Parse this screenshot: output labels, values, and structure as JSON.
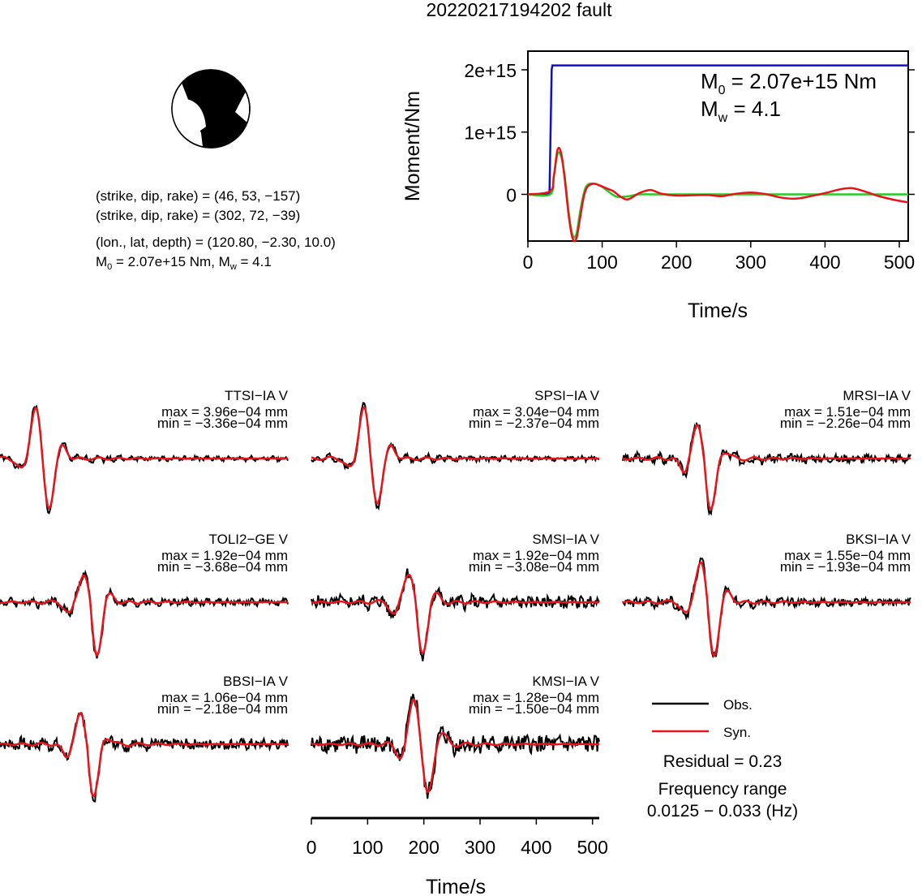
{
  "title": "20220217194202 fault",
  "info": {
    "np1": "(strike, dip, rake) = (46, 53, −157)",
    "np2": "(strike, dip, rake) = (302, 72, −39)",
    "location": "(lon., lat, depth) = (120.80, −2.30, 10.0)",
    "m0": "2.07e+15 Nm",
    "mw": "4.1"
  },
  "legend": {
    "obs": "Obs.",
    "syn": "Syn."
  },
  "residual": "Residual = 0.23",
  "freq_label": "Frequency range",
  "freq_value": "0.0125 − 0.033 (Hz)",
  "colors": {
    "obs": "#000000",
    "syn": "#e8141b",
    "cumulative": "#1010cc",
    "model": "#22cc22"
  },
  "chart_data": [
    {
      "type": "line",
      "name": "source-time-function",
      "xlabel": "Time/s",
      "ylabel": "Moment/Nm",
      "xlim": [
        0,
        512
      ],
      "ylim": [
        -750000000000000.0,
        2300000000000000.0
      ],
      "xticks": [
        0,
        100,
        200,
        300,
        400,
        500
      ],
      "yticks": [
        0,
        1000000000000000.0,
        2000000000000000.0
      ],
      "ytick_labels": [
        "0",
        "1e+15",
        "2e+15"
      ],
      "annotation": {
        "m0_line": "M0 = 2.07e+15 Nm",
        "mw_line": "Mw = 4.1"
      },
      "series": [
        {
          "key": "cumulative",
          "color": "#1010cc",
          "x": [
            0,
            29,
            32,
            33,
            100,
            512
          ],
          "y": [
            0,
            0,
            2000000000000000.0,
            2070000000000000.0,
            2070000000000000.0,
            2070000000000000.0
          ]
        },
        {
          "key": "model",
          "color": "#22cc22",
          "x": [
            0,
            30,
            35,
            40,
            45,
            50,
            55,
            60,
            65,
            70,
            75,
            80,
            90,
            100,
            110,
            120,
            135,
            150,
            170,
            200,
            300,
            400,
            512
          ],
          "y": [
            0,
            0,
            300000000000000.0,
            650000000000000.0,
            600000000000000.0,
            250000000000000.0,
            -300000000000000.0,
            -650000000000000.0,
            -650000000000000.0,
            -300000000000000.0,
            0,
            150000000000000.0,
            170000000000000.0,
            120000000000000.0,
            30000000000000.0,
            -40000000000000.0,
            -30000000000000.0,
            0,
            0,
            0,
            0,
            0,
            0
          ]
        },
        {
          "key": "syn",
          "color": "#e8141b",
          "x": [
            0,
            30,
            35,
            40,
            45,
            50,
            55,
            60,
            65,
            70,
            75,
            80,
            88,
            95,
            105,
            115,
            125,
            135,
            150,
            165,
            180,
            200,
            240,
            260,
            280,
            300,
            320,
            340,
            360,
            380,
            400,
            420,
            435,
            450,
            470,
            490,
            512
          ],
          "y": [
            0,
            50000000000000.0,
            300000000000000.0,
            720000000000000.0,
            650000000000000.0,
            200000000000000.0,
            -350000000000000.0,
            -700000000000000.0,
            -720000000000000.0,
            -400000000000000.0,
            -50000000000000.0,
            120000000000000.0,
            170000000000000.0,
            150000000000000.0,
            100000000000000.0,
            50000000000000.0,
            -40000000000000.0,
            -80000000000000.0,
            20000000000000.0,
            70000000000000.0,
            10000000000000.0,
            -20000000000000.0,
            -10000000000000.0,
            -30000000000000.0,
            10000000000000.0,
            30000000000000.0,
            5000000000000.0,
            -50000000000000.0,
            -70000000000000.0,
            -30000000000000.0,
            20000000000000.0,
            80000000000000.0,
            100000000000000.0,
            60000000000000.0,
            -20000000000000.0,
            -80000000000000.0,
            -130000000000000.0
          ]
        }
      ]
    },
    {
      "type": "line",
      "name": "waveform-comparison",
      "xlabel": "Time/s",
      "xlim": [
        0,
        512
      ],
      "xticks": [
        0,
        100,
        200,
        300,
        400,
        500
      ],
      "panels": [
        {
          "station": "TTSI−IA V",
          "max": "max = 3.96e−04 mm",
          "min": "min = −3.36e−04 mm",
          "col": 0,
          "row": 0,
          "t0": 75,
          "amp_max": 1.0,
          "amp_min": 0.92,
          "noise": 0.03,
          "seed": 1
        },
        {
          "station": "SPSI−IA V",
          "max": "max = 3.04e−04 mm",
          "min": "min = −2.37e−04 mm",
          "col": 1,
          "row": 0,
          "t0": 105,
          "amp_max": 1.0,
          "amp_min": 0.82,
          "noise": 0.03,
          "seed": 2
        },
        {
          "station": "MRSI−IA V",
          "max": "max = 1.51e−04 mm",
          "min": "min = −2.26e−04 mm",
          "col": 2,
          "row": 0,
          "t0": 145,
          "amp_max": 0.6,
          "amp_min": 1.0,
          "noise": 0.06,
          "seed": 3
        },
        {
          "station": "TOLI2−GE V",
          "max": "max = 1.92e−04 mm",
          "min": "min = −3.68e−04 mm",
          "col": 0,
          "row": 1,
          "t0": 160,
          "amp_max": 0.55,
          "amp_min": 1.0,
          "noise": 0.05,
          "seed": 4
        },
        {
          "station": "SMSI−IA V",
          "max": "max = 1.92e−04 mm",
          "min": "min = −3.08e−04 mm",
          "col": 1,
          "row": 1,
          "t0": 185,
          "amp_max": 0.6,
          "amp_min": 1.0,
          "noise": 0.09,
          "seed": 5
        },
        {
          "station": "BKSI−IA V",
          "max": "max = 1.55e−04 mm",
          "min": "min = −1.93e−04 mm",
          "col": 2,
          "row": 1,
          "t0": 150,
          "amp_max": 0.8,
          "amp_min": 1.0,
          "noise": 0.06,
          "seed": 6
        },
        {
          "station": "BBSI−IA V",
          "max": "max = 1.06e−04 mm",
          "min": "min = −2.18e−04 mm",
          "col": 0,
          "row": 2,
          "t0": 155,
          "amp_max": 0.55,
          "amp_min": 1.0,
          "noise": 0.08,
          "seed": 7
        },
        {
          "station": "KMSI−IA V",
          "max": "max = 1.28e−04 mm",
          "min": "min = −1.50e−04 mm",
          "col": 1,
          "row": 2,
          "t0": 195,
          "amp_max": 0.9,
          "amp_min": 1.0,
          "noise": 0.14,
          "seed": 8
        }
      ]
    }
  ]
}
